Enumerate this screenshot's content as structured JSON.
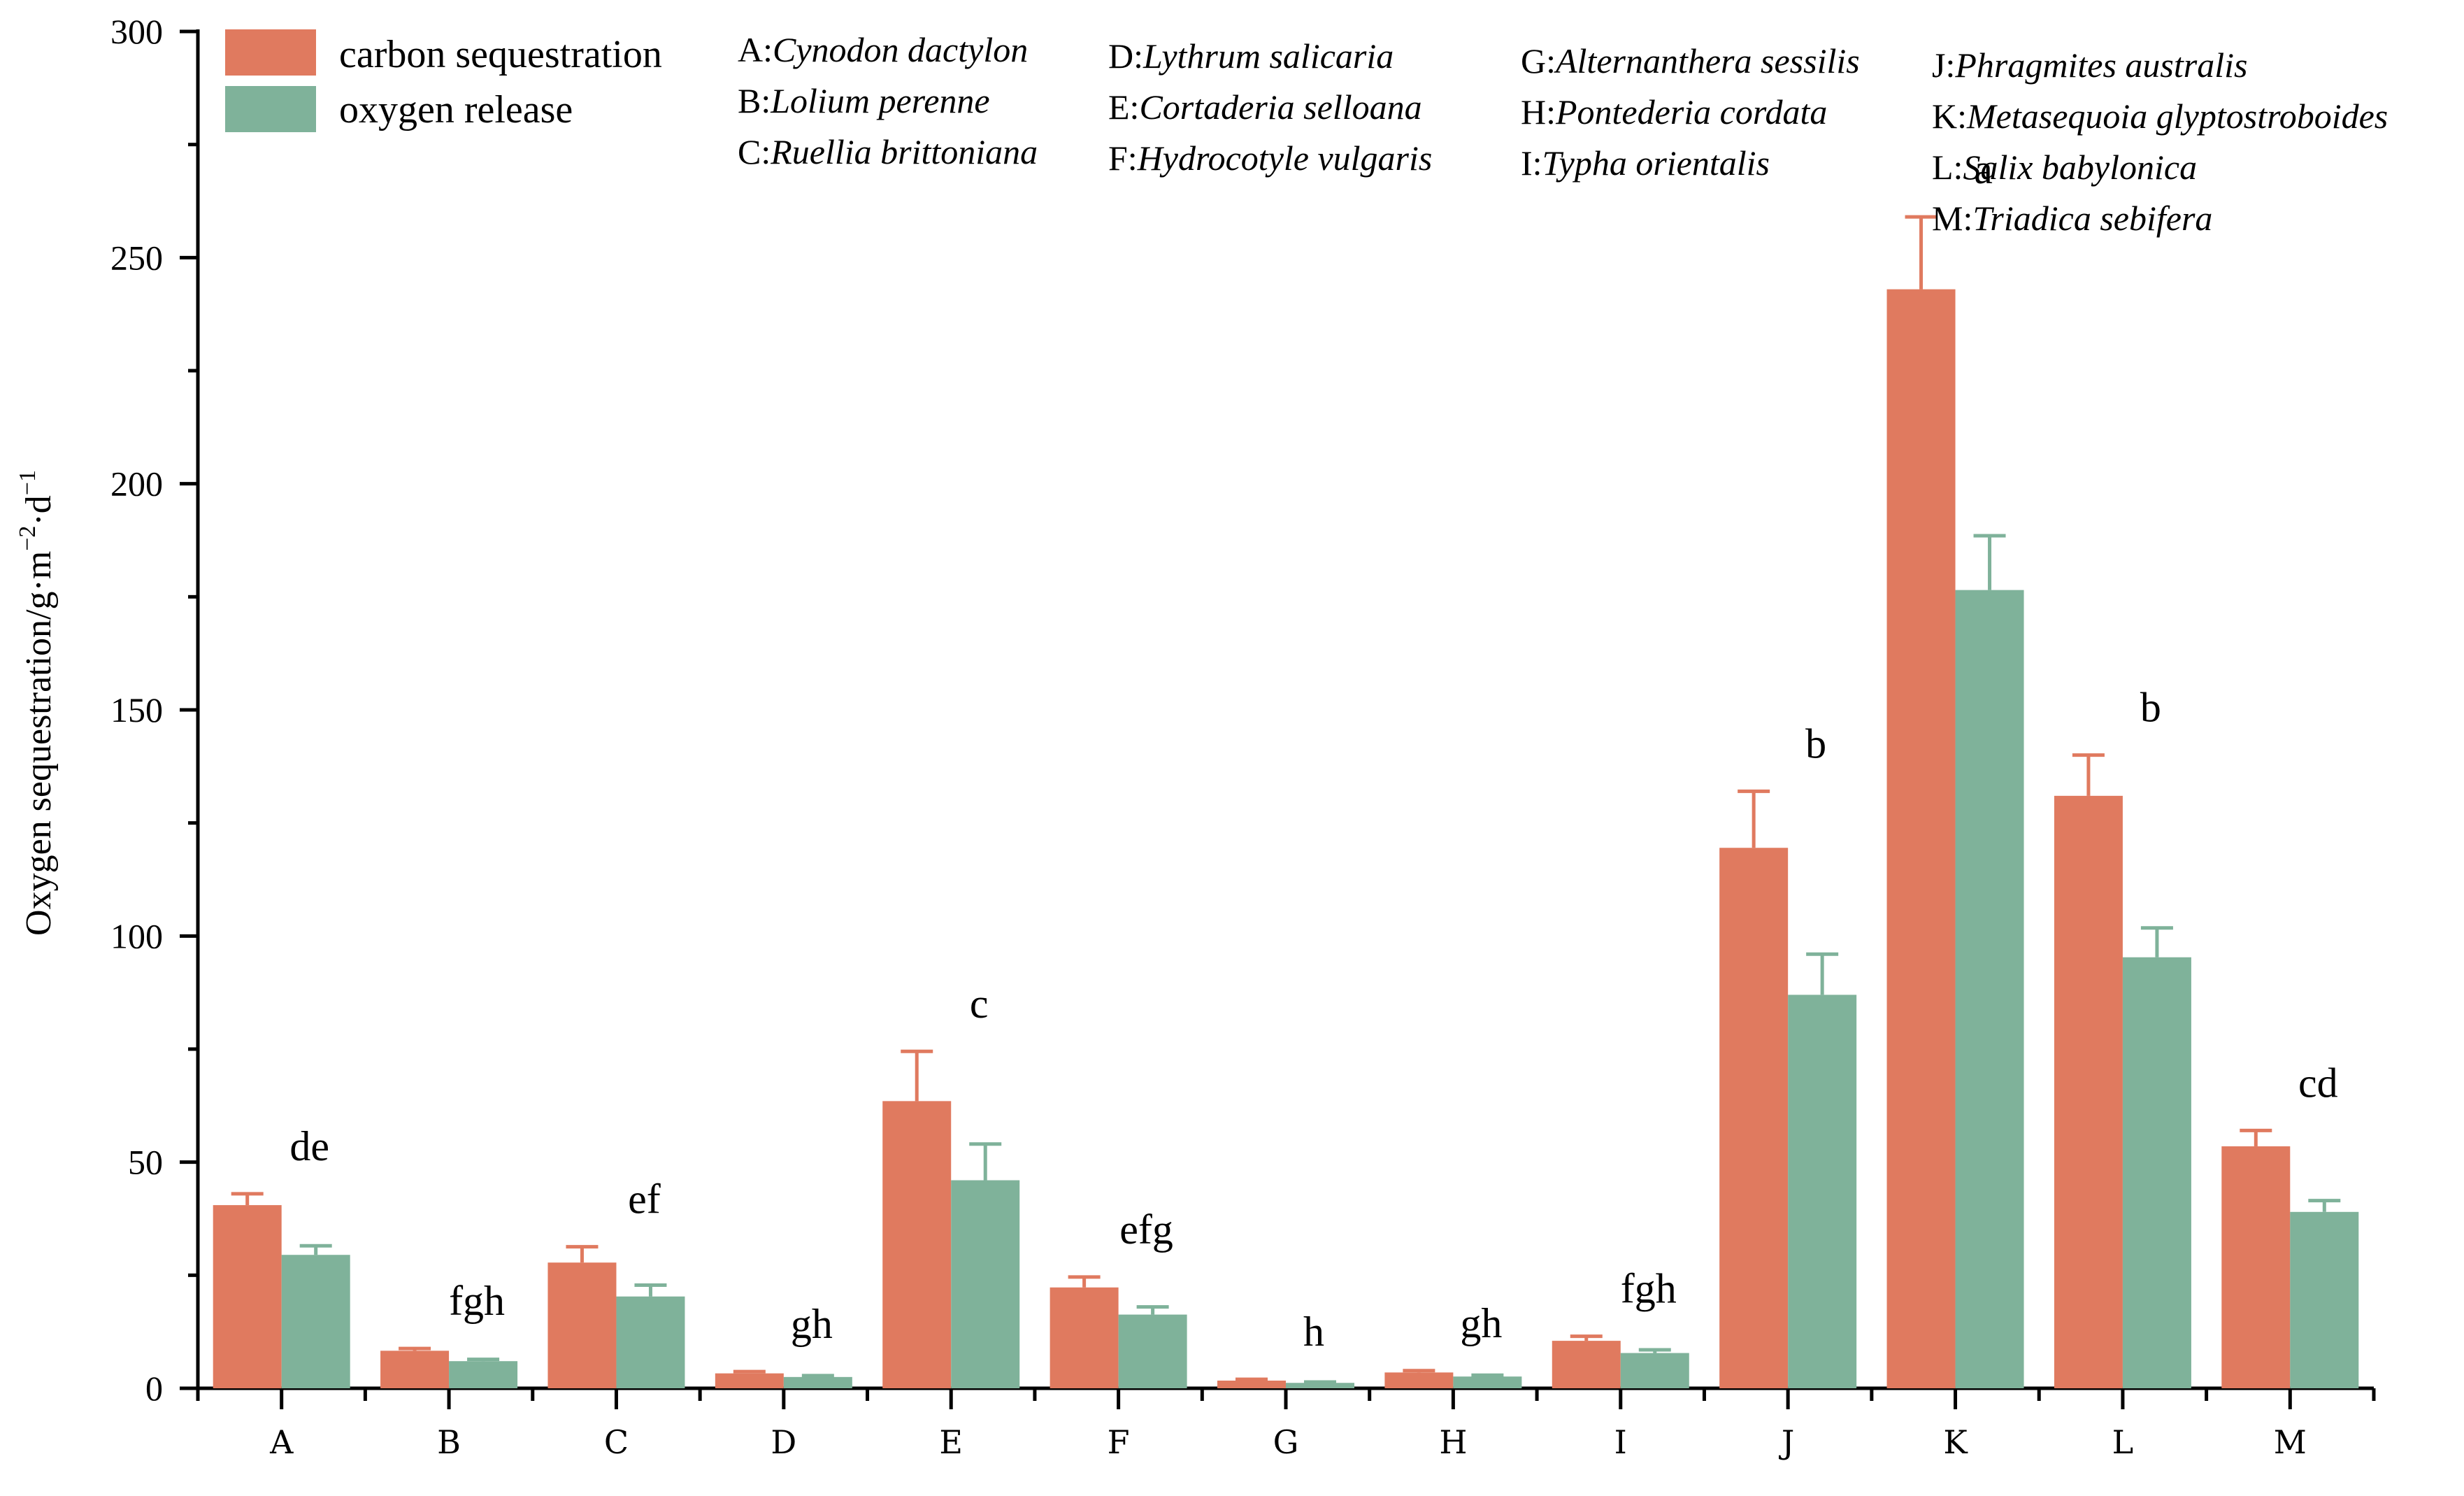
{
  "colors": {
    "carbon": "#E07A5F",
    "oxygen": "#7FB29A",
    "axis": "#000000"
  },
  "species_key": [
    {
      "code": "A:",
      "name": "Cynodon dactylon"
    },
    {
      "code": "B:",
      "name": "Lolium perenne"
    },
    {
      "code": "C:",
      "name": "Ruellia brittoniana"
    },
    {
      "code": "D:",
      "name": "Lythrum salicaria"
    },
    {
      "code": "E:",
      "name": "Cortaderia selloana"
    },
    {
      "code": "F:",
      "name": "Hydrocotyle vulgaris"
    },
    {
      "code": "G:",
      "name": "Alternanthera sessilis"
    },
    {
      "code": "H:",
      "name": "Pontederia cordata"
    },
    {
      "code": "I:",
      "name": "Typha orientalis"
    },
    {
      "code": "J:",
      "name": "Phragmites australis"
    },
    {
      "code": "K:",
      "name": "Metasequoia glyptostroboides"
    },
    {
      "code": "L:",
      "name": "Salix babylonica"
    },
    {
      "code": "M:",
      "name": "Triadica sebifera"
    }
  ],
  "chart_data": {
    "type": "bar",
    "title": "",
    "xlabel": "",
    "ylabel_parts": [
      "Oxygen sequestration/g·m",
      "−2",
      "·d",
      "−1"
    ],
    "ylim": [
      0,
      300
    ],
    "yticks": [
      0,
      50,
      100,
      150,
      200,
      250,
      300
    ],
    "grid": false,
    "legend_position": "top-left",
    "categories": [
      "A",
      "B",
      "C",
      "D",
      "E",
      "F",
      "G",
      "H",
      "I",
      "J",
      "K",
      "L",
      "M"
    ],
    "series": [
      {
        "name": "carbon sequestration",
        "values": [
          40.5,
          8.3,
          27.8,
          3.3,
          63.5,
          22.3,
          1.7,
          3.5,
          10.5,
          119.5,
          243.0,
          131.0,
          53.5
        ],
        "errors": [
          2.5,
          0.5,
          3.5,
          0.4,
          11.0,
          2.3,
          0.3,
          0.4,
          1.0,
          12.5,
          16.0,
          9.0,
          3.5
        ]
      },
      {
        "name": "oxygen release",
        "values": [
          29.5,
          6.0,
          20.3,
          2.5,
          46.0,
          16.3,
          1.2,
          2.6,
          7.8,
          87.0,
          176.5,
          95.3,
          39.0
        ],
        "errors": [
          2.0,
          0.4,
          2.5,
          0.3,
          8.0,
          1.7,
          0.2,
          0.3,
          0.7,
          9.0,
          12.0,
          6.5,
          2.5
        ]
      }
    ],
    "annotations": [
      "de",
      "fgh",
      "ef",
      "gh",
      "c",
      "efg",
      "h",
      "gh",
      "fgh",
      "b",
      "a",
      "b",
      "cd"
    ]
  }
}
